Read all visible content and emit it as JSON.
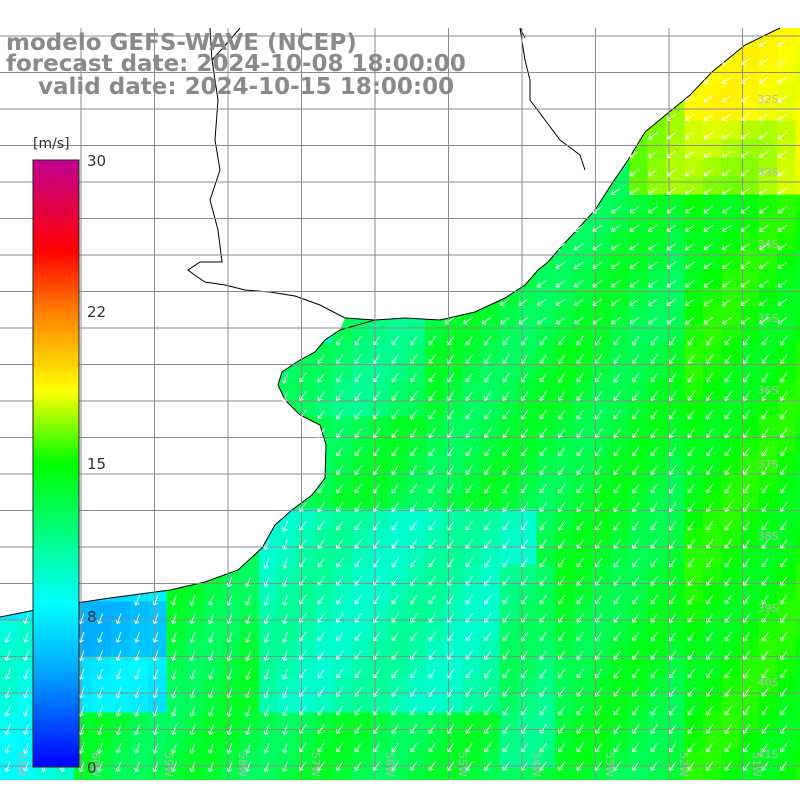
{
  "header": {
    "line1": "modelo GEFS-WAVE (NCEP)",
    "line2": "forecast date: 2024-10-08 18:00:00",
    "line3": "    valid date: 2024-10-15 18:00:00"
  },
  "colorbar": {
    "unit": "[m/s]",
    "ticks": [
      "30",
      "22",
      "15",
      "8",
      "0"
    ],
    "min": 0,
    "max": 30,
    "colors": [
      "#0000ff",
      "#00a0ff",
      "#00ffff",
      "#00ff00",
      "#ffff00",
      "#ff8000",
      "#ff0000",
      "#c00090"
    ]
  },
  "map": {
    "variable": "wind speed and direction",
    "land_color": "#ffffff",
    "grid_color": "#8c8c8c",
    "coast_color": "#000000",
    "lat_labels": [
      "32S",
      "33S",
      "34S",
      "35S",
      "36S",
      "37S",
      "38S",
      "39S",
      "40S",
      "41S"
    ],
    "lon_labels": [
      "61W",
      "60W",
      "59W",
      "58W",
      "57W",
      "56W",
      "55W",
      "54W",
      "53W",
      "52W",
      "51W"
    ]
  }
}
